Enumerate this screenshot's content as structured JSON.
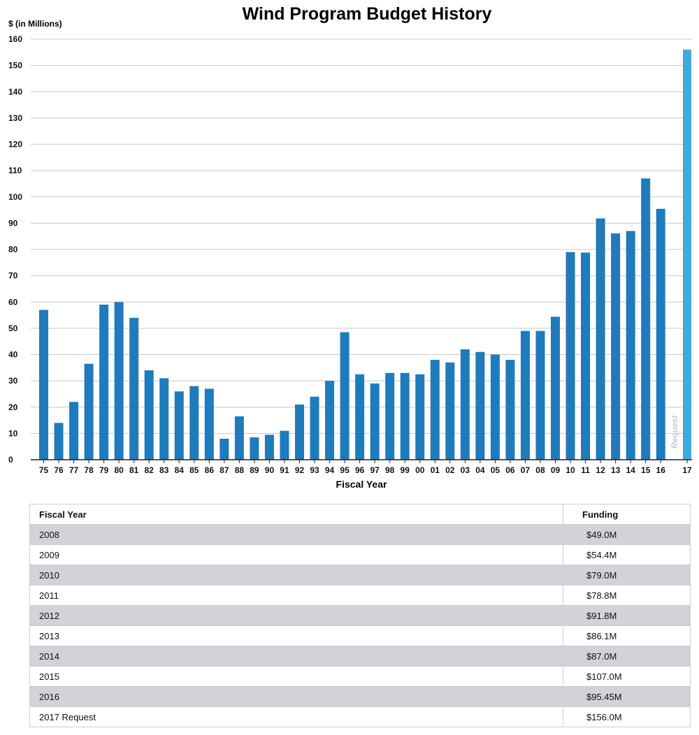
{
  "chart_data": {
    "type": "bar",
    "title": "Wind Program Budget History",
    "ylabel": "$ (in Millions)",
    "xlabel": "Fiscal Year",
    "ylim": [
      0,
      160
    ],
    "yticks": [
      0,
      10,
      20,
      30,
      40,
      50,
      60,
      70,
      80,
      90,
      100,
      110,
      120,
      130,
      140,
      150,
      160
    ],
    "grid": true,
    "categories": [
      "75",
      "76",
      "77",
      "78",
      "79",
      "80",
      "81",
      "82",
      "83",
      "84",
      "85",
      "86",
      "87",
      "88",
      "89",
      "90",
      "91",
      "92",
      "93",
      "94",
      "95",
      "96",
      "97",
      "98",
      "99",
      "00",
      "01",
      "02",
      "03",
      "04",
      "05",
      "06",
      "07",
      "08",
      "09",
      "10",
      "11",
      "12",
      "13",
      "14",
      "15",
      "16",
      "17"
    ],
    "values": [
      57,
      14,
      22,
      36.5,
      59,
      60,
      54,
      34,
      31,
      26,
      28,
      27,
      8,
      16.5,
      8.5,
      9.5,
      11,
      21,
      24,
      30,
      48.5,
      32.5,
      29,
      33,
      33,
      32.5,
      38,
      37,
      42,
      41,
      40,
      38,
      49,
      49,
      54.4,
      79,
      78.8,
      91.8,
      86.1,
      87,
      107,
      95.45,
      156
    ],
    "colors": {
      "bar": "#1f7bbb",
      "request_bar": "#3fa9e6",
      "grid": "#c8c8c8",
      "annotation": "#c9cbcd"
    },
    "annotation": "Request"
  },
  "table": {
    "headers": {
      "year": "Fiscal Year",
      "funding": "Funding"
    },
    "rows": [
      {
        "year": "2008",
        "funding": "$49.0M"
      },
      {
        "year": "2009",
        "funding": "$54.4M"
      },
      {
        "year": "2010",
        "funding": "$79.0M"
      },
      {
        "year": "2011",
        "funding": "$78.8M"
      },
      {
        "year": "2012",
        "funding": "$91.8M"
      },
      {
        "year": "2013",
        "funding": "$86.1M"
      },
      {
        "year": "2014",
        "funding": "$87.0M"
      },
      {
        "year": "2015",
        "funding": "$107.0M"
      },
      {
        "year": "2016",
        "funding": "$95.45M"
      },
      {
        "year": "2017 Request",
        "funding": "$156.0M"
      }
    ]
  }
}
